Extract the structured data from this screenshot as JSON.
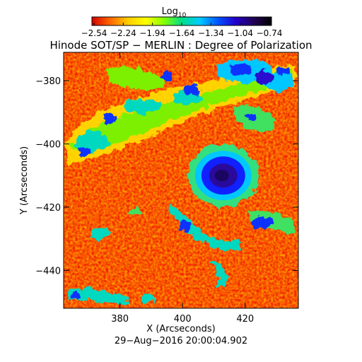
{
  "colorbar": {
    "label_base": "Log",
    "label_sub": "10",
    "tick_labels": [
      "−2.54",
      "−2.24",
      "−1.94",
      "−1.64",
      "−1.34",
      "−1.04",
      "−0.74"
    ],
    "range": [
      -2.54,
      -0.74
    ],
    "colormap": [
      "#d40000",
      "#ff6600",
      "#ffcc00",
      "#ffff00",
      "#88ff00",
      "#00dd88",
      "#00ccff",
      "#0055ff",
      "#2200cc",
      "#220055",
      "#000000"
    ]
  },
  "title": "Hinode SOT/SP − MERLIN : Degree of Polarization",
  "timestamp": "29−Aug−2016 20:00:04.902",
  "map": {
    "xlabel": "X (Arcseconds)",
    "ylabel": "Y (Arcseconds)",
    "xlim": [
      362,
      437
    ],
    "ylim": [
      -452,
      -371
    ],
    "x_ticks": [
      380,
      400,
      420
    ],
    "y_ticks": [
      -380,
      -400,
      -420,
      -440
    ],
    "x_tick_labels": [
      "380",
      "400",
      "420"
    ],
    "y_tick_labels": [
      "−380",
      "−400",
      "−420",
      "−440"
    ],
    "background_color": "#ff6a00",
    "features": {
      "sunspot_center": [
        413,
        -410
      ],
      "plage_region": "upper-left and top-right network, scattered blue patches",
      "speckle_colors": [
        "#ff3000",
        "#ff9a00",
        "#ffd000",
        "#d40000"
      ]
    }
  }
}
